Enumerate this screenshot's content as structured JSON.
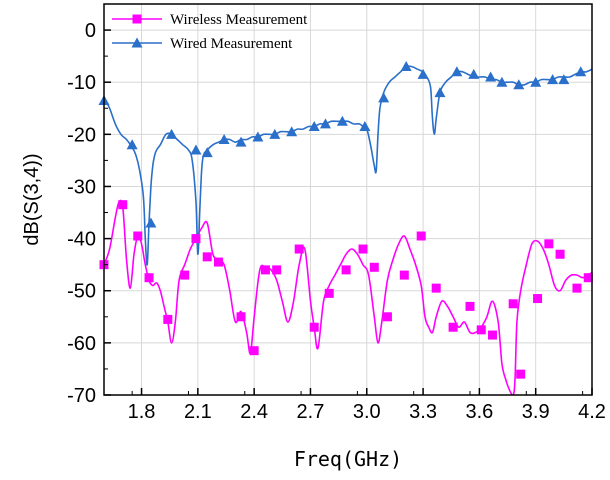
{
  "chart_data": {
    "type": "line",
    "xlabel": "Freq(GHz)",
    "ylabel": "dB(S(3,4))",
    "xlim": [
      1.6,
      4.2
    ],
    "ylim": [
      -70,
      5
    ],
    "xticks": [
      1.8,
      2.1,
      2.4,
      2.7,
      3.0,
      3.3,
      3.6,
      3.9,
      4.2
    ],
    "xtick_labels": [
      "1.8",
      "2.1",
      "2.4",
      "2.7",
      "3.0",
      "3.3",
      "3.6",
      "3.9",
      "4.2"
    ],
    "yticks": [
      0,
      -10,
      -20,
      -30,
      -40,
      -50,
      -60,
      -70
    ],
    "ytick_labels": [
      "0",
      "-10",
      "-20",
      "-30",
      "-40",
      "-50",
      "-60",
      "-70"
    ],
    "grid": true,
    "legend_position": "top-left",
    "series": [
      {
        "name": "Wireless Measurement",
        "color": "#ff00ff",
        "marker": "square",
        "x": [
          1.6,
          1.63,
          1.66,
          1.68,
          1.7,
          1.72,
          1.74,
          1.76,
          1.78,
          1.8,
          1.82,
          1.84,
          1.86,
          1.88,
          1.9,
          1.92,
          1.94,
          1.96,
          1.98,
          2.0,
          2.03,
          2.06,
          2.09,
          2.12,
          2.15,
          2.18,
          2.21,
          2.24,
          2.27,
          2.3,
          2.33,
          2.36,
          2.38,
          2.4,
          2.43,
          2.46,
          2.49,
          2.52,
          2.55,
          2.58,
          2.61,
          2.64,
          2.67,
          2.7,
          2.72,
          2.74,
          2.77,
          2.8,
          2.83,
          2.86,
          2.89,
          2.92,
          2.95,
          2.98,
          3.01,
          3.04,
          3.06,
          3.08,
          3.11,
          3.14,
          3.17,
          3.2,
          3.23,
          3.26,
          3.29,
          3.31,
          3.33,
          3.35,
          3.37,
          3.4,
          3.43,
          3.46,
          3.49,
          3.52,
          3.55,
          3.58,
          3.61,
          3.64,
          3.67,
          3.7,
          3.72,
          3.74,
          3.76,
          3.78,
          3.79,
          3.8,
          3.82,
          3.85,
          3.88,
          3.91,
          3.94,
          3.97,
          4.0,
          4.03,
          4.06,
          4.09,
          4.12,
          4.15,
          4.18,
          4.2
        ],
        "y": [
          -45,
          -42,
          -36,
          -33,
          -34,
          -44,
          -49.5,
          -43,
          -39.5,
          -41,
          -45,
          -48,
          -49,
          -48.5,
          -50,
          -53,
          -56,
          -60,
          -56,
          -48,
          -45,
          -42,
          -40,
          -38,
          -37,
          -43,
          -44,
          -45,
          -50,
          -56,
          -54,
          -58,
          -62,
          -55,
          -46,
          -45.5,
          -46,
          -48,
          -52,
          -56,
          -52,
          -45,
          -42,
          -52,
          -57,
          -61,
          -52,
          -49,
          -47,
          -45,
          -43,
          -42,
          -43,
          -45,
          -47,
          -55,
          -60,
          -56,
          -48,
          -44,
          -41,
          -39.5,
          -42,
          -45,
          -49,
          -55,
          -57,
          -58,
          -55,
          -52,
          -53,
          -55,
          -57,
          -56,
          -58,
          -58,
          -57,
          -55,
          -52,
          -56,
          -64,
          -67,
          -69,
          -70,
          -67,
          -56,
          -50,
          -45,
          -41,
          -40.5,
          -42,
          -45,
          -49,
          -50,
          -48,
          -47,
          -47,
          -47.5,
          -47,
          -46.5
        ],
        "marker_x": [
          1.6,
          1.7,
          1.78,
          1.84,
          1.94,
          2.03,
          2.09,
          2.15,
          2.21,
          2.33,
          2.4,
          2.46,
          2.52,
          2.64,
          2.72,
          2.8,
          2.89,
          2.98,
          3.04,
          3.11,
          3.2,
          3.29,
          3.37,
          3.46,
          3.55,
          3.61,
          3.67,
          3.78,
          3.82,
          3.91,
          3.97,
          4.03,
          4.12,
          4.18
        ],
        "marker_y": [
          -45,
          -33.5,
          -39.5,
          -47.5,
          -55.5,
          -47,
          -40,
          -43.5,
          -44.5,
          -55,
          -61.5,
          -46,
          -46,
          -42,
          -57,
          -50.5,
          -46,
          -42,
          -45.5,
          -55,
          -47,
          -39.5,
          -49.5,
          -57,
          -53,
          -57.5,
          -58.5,
          -52.5,
          -66,
          -51.5,
          -41,
          -43,
          -49.5,
          -47.5
        ]
      },
      {
        "name": "Wired Measurement",
        "color": "#2a6fc9",
        "marker": "triangle",
        "x": [
          1.6,
          1.63,
          1.66,
          1.69,
          1.72,
          1.75,
          1.77,
          1.79,
          1.81,
          1.82,
          1.83,
          1.84,
          1.85,
          1.86,
          1.87,
          1.88,
          1.9,
          1.93,
          1.96,
          1.99,
          2.02,
          2.05,
          2.07,
          2.09,
          2.1,
          2.11,
          2.12,
          2.13,
          2.15,
          2.18,
          2.21,
          2.24,
          2.27,
          2.3,
          2.33,
          2.36,
          2.39,
          2.42,
          2.45,
          2.48,
          2.51,
          2.54,
          2.57,
          2.6,
          2.63,
          2.66,
          2.69,
          2.72,
          2.75,
          2.78,
          2.81,
          2.84,
          2.87,
          2.9,
          2.93,
          2.96,
          2.98,
          3.0,
          3.02,
          3.04,
          3.05,
          3.06,
          3.07,
          3.09,
          3.12,
          3.15,
          3.18,
          3.21,
          3.24,
          3.27,
          3.3,
          3.32,
          3.34,
          3.35,
          3.36,
          3.37,
          3.39,
          3.42,
          3.45,
          3.48,
          3.51,
          3.54,
          3.57,
          3.6,
          3.63,
          3.66,
          3.69,
          3.72,
          3.75,
          3.78,
          3.81,
          3.84,
          3.87,
          3.9,
          3.93,
          3.96,
          3.99,
          4.02,
          4.05,
          4.08,
          4.11,
          4.14,
          4.17,
          4.2
        ],
        "y": [
          -13,
          -15,
          -18,
          -20,
          -21,
          -22.5,
          -24,
          -27,
          -32,
          -40,
          -45,
          -37,
          -30,
          -26,
          -24,
          -23,
          -22,
          -20,
          -20,
          -21,
          -22,
          -23,
          -25,
          -33,
          -43,
          -35,
          -27,
          -24,
          -23,
          -22,
          -21.5,
          -21,
          -21,
          -21.5,
          -21,
          -21,
          -20.5,
          -20.5,
          -20,
          -20,
          -20,
          -19.5,
          -19.5,
          -19.5,
          -19,
          -19,
          -18.5,
          -18.5,
          -18,
          -18,
          -17.5,
          -17.5,
          -17.5,
          -17.5,
          -18,
          -18,
          -18.5,
          -19,
          -22,
          -26,
          -27,
          -20,
          -15,
          -12,
          -10,
          -9,
          -8,
          -7,
          -7,
          -7.5,
          -8,
          -9,
          -11,
          -17,
          -20,
          -17,
          -12,
          -10,
          -9,
          -8,
          -8,
          -8.5,
          -9,
          -9,
          -9,
          -9.5,
          -9.5,
          -10,
          -10,
          -10,
          -10.5,
          -10.5,
          -10,
          -10,
          -9.5,
          -9.5,
          -9.5,
          -9,
          -9,
          -9,
          -8.5,
          -8,
          -8,
          -7.5
        ],
        "marker_x": [
          1.6,
          1.75,
          1.85,
          1.96,
          2.09,
          2.15,
          2.24,
          2.33,
          2.42,
          2.51,
          2.6,
          2.72,
          2.78,
          2.87,
          2.99,
          3.09,
          3.21,
          3.3,
          3.39,
          3.48,
          3.57,
          3.66,
          3.72,
          3.81,
          3.9,
          3.99,
          4.05,
          4.14
        ],
        "marker_y": [
          -13.5,
          -22,
          -37,
          -20,
          -23,
          -23.5,
          -21,
          -21.5,
          -20.5,
          -20,
          -19.5,
          -18.5,
          -18,
          -17.5,
          -18.5,
          -13,
          -7,
          -8.5,
          -12,
          -8,
          -8.5,
          -9,
          -10,
          -10.5,
          -10,
          -9.5,
          -9.5,
          -8
        ]
      }
    ]
  }
}
